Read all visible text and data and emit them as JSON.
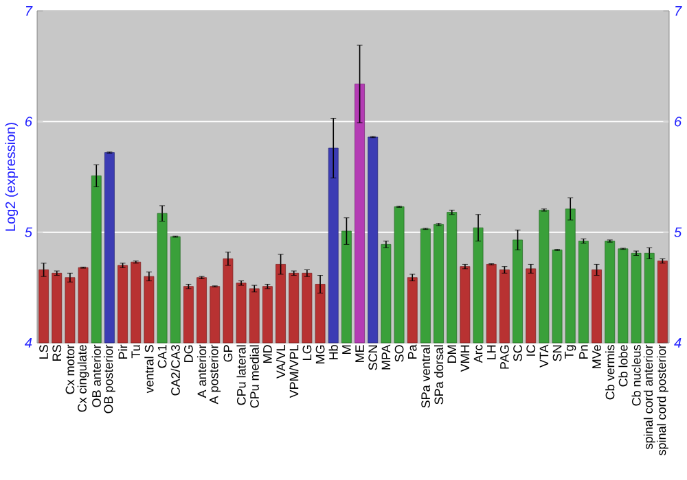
{
  "chart_data": {
    "type": "bar",
    "ylabel": "Log2 (expression)",
    "categories": [
      "LS",
      "RS",
      "Cx motor",
      "Cx cingulate",
      "OB anterior",
      "OB posterior",
      "Pir",
      "Tu",
      "ventral S",
      "CA1",
      "CA2/CA3",
      "DG",
      "A anterior",
      "A posterior",
      "GP",
      "CPu lateral",
      "CPu medial",
      "MD",
      "VA/VL",
      "VPM/VPL",
      "LG",
      "MG",
      "Hb",
      "M",
      "ME",
      "SCN",
      "MPA",
      "SO",
      "Pa",
      "SPa ventral",
      "SPa dorsal",
      "DM",
      "VMH",
      "Arc",
      "LH",
      "PAG",
      "SC",
      "IC",
      "VTA",
      "SN",
      "Tg",
      "Pn",
      "MVe",
      "Cb vermis",
      "Cb lobe",
      "Cb nucleus",
      "spinal cord anterior",
      "spinal cord posterior"
    ],
    "values": [
      4.66,
      4.63,
      4.59,
      4.68,
      5.51,
      5.72,
      4.7,
      4.73,
      4.6,
      5.17,
      4.96,
      4.51,
      4.59,
      4.51,
      4.76,
      4.54,
      4.49,
      4.51,
      4.71,
      4.63,
      4.63,
      4.53,
      5.76,
      5.01,
      6.34,
      5.86,
      4.89,
      5.23,
      4.59,
      5.03,
      5.07,
      5.18,
      4.69,
      5.04,
      4.71,
      4.66,
      4.93,
      4.67,
      5.2,
      4.84,
      5.21,
      4.92,
      4.66,
      4.92,
      4.85,
      4.81,
      4.81,
      4.74
    ],
    "errors": [
      0.06,
      0.02,
      0.04,
      0.005,
      0.1,
      0.005,
      0.02,
      0.01,
      0.04,
      0.07,
      0.005,
      0.02,
      0.01,
      0.005,
      0.06,
      0.02,
      0.03,
      0.02,
      0.09,
      0.02,
      0.03,
      0.08,
      0.27,
      0.12,
      0.35,
      0.005,
      0.03,
      0.005,
      0.03,
      0.005,
      0.01,
      0.02,
      0.02,
      0.12,
      0.005,
      0.03,
      0.09,
      0.04,
      0.01,
      0.005,
      0.1,
      0.02,
      0.05,
      0.01,
      0.005,
      0.02,
      0.05,
      0.02
    ],
    "colors": [
      "#b83232",
      "#b83232",
      "#b83232",
      "#b83232",
      "#3aa03a",
      "#3c3cb4",
      "#b83232",
      "#b83232",
      "#b83232",
      "#3aa03a",
      "#3aa03a",
      "#b83232",
      "#b83232",
      "#b83232",
      "#b83232",
      "#b83232",
      "#b83232",
      "#b83232",
      "#b83232",
      "#b83232",
      "#b83232",
      "#b83232",
      "#3c3cb4",
      "#3aa03a",
      "#b43cb4",
      "#3c3cb4",
      "#3aa03a",
      "#3aa03a",
      "#b83232",
      "#3aa03a",
      "#3aa03a",
      "#3aa03a",
      "#b83232",
      "#3aa03a",
      "#b83232",
      "#b83232",
      "#3aa03a",
      "#b83232",
      "#3aa03a",
      "#3aa03a",
      "#3aa03a",
      "#3aa03a",
      "#b83232",
      "#3aa03a",
      "#3aa03a",
      "#3aa03a",
      "#3aa03a",
      "#b83232"
    ],
    "ylim": [
      4,
      7
    ],
    "yticks": [
      4,
      5,
      6,
      7
    ],
    "y2lim": [
      4,
      7
    ],
    "y2ticks": [
      4,
      5,
      6,
      7
    ],
    "grid": "y"
  }
}
